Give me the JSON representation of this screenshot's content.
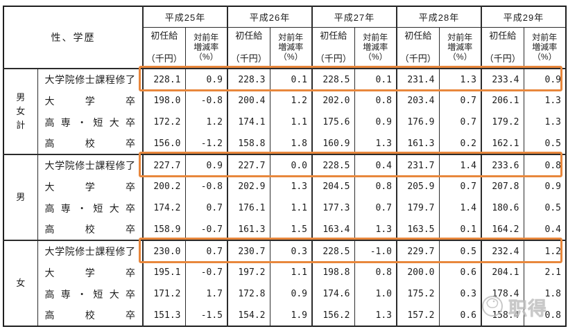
{
  "colors": {
    "highlight": "#E8873C",
    "border": "#2b2b2b",
    "watermark": "#bfbfbf"
  },
  "table": {
    "corner_label": "性、学歴",
    "years": [
      "平成25年",
      "平成26年",
      "平成27年",
      "平成28年",
      "平成29年"
    ],
    "col_salary_lines": [
      "初任給",
      "（千円）"
    ],
    "col_change_lines": [
      "対前年",
      "増減率",
      "（%）"
    ],
    "groups": [
      {
        "gender": "男女計",
        "rows": [
          {
            "education": "大学院修士課程修了",
            "highlighted": true,
            "values": [
              "228.1",
              "0.9",
              "228.3",
              "0.1",
              "228.5",
              "0.1",
              "231.4",
              "1.3",
              "233.4",
              "0.9"
            ]
          },
          {
            "education": "大学卒",
            "highlighted": false,
            "values": [
              "198.0",
              "-0.8",
              "200.4",
              "1.2",
              "202.0",
              "0.8",
              "203.4",
              "0.7",
              "206.1",
              "1.3"
            ]
          },
          {
            "education": "高専・短大卒",
            "highlighted": false,
            "values": [
              "172.2",
              "1.2",
              "174.1",
              "1.1",
              "175.6",
              "0.9",
              "176.9",
              "0.7",
              "179.2",
              "1.3"
            ]
          },
          {
            "education": "高校卒",
            "highlighted": false,
            "values": [
              "156.0",
              "-1.2",
              "158.8",
              "1.8",
              "160.9",
              "1.3",
              "161.3",
              "0.2",
              "162.1",
              "0.5"
            ]
          }
        ]
      },
      {
        "gender": "男",
        "rows": [
          {
            "education": "大学院修士課程修了",
            "highlighted": true,
            "values": [
              "227.7",
              "0.9",
              "227.7",
              "0.0",
              "228.5",
              "0.4",
              "231.7",
              "1.4",
              "233.6",
              "0.8"
            ]
          },
          {
            "education": "大学卒",
            "highlighted": false,
            "values": [
              "200.2",
              "-0.8",
              "202.9",
              "1.3",
              "204.5",
              "0.8",
              "205.9",
              "0.7",
              "207.8",
              "0.9"
            ]
          },
          {
            "education": "高専・短大卒",
            "highlighted": false,
            "values": [
              "174.2",
              "0.7",
              "176.1",
              "1.1",
              "177.3",
              "0.7",
              "179.7",
              "1.4",
              "180.6",
              "0.5"
            ]
          },
          {
            "education": "高校卒",
            "highlighted": false,
            "values": [
              "158.9",
              "-0.7",
              "161.3",
              "1.5",
              "163.4",
              "1.3",
              "163.5",
              "0.1",
              "164.2",
              "0.4"
            ]
          }
        ]
      },
      {
        "gender": "女",
        "rows": [
          {
            "education": "大学院修士課程修了",
            "highlighted": true,
            "values": [
              "230.0",
              "0.7",
              "230.7",
              "0.3",
              "228.5",
              "-1.0",
              "229.7",
              "0.5",
              "232.4",
              "1.2"
            ]
          },
          {
            "education": "大学卒",
            "highlighted": false,
            "values": [
              "195.1",
              "-0.7",
              "197.2",
              "1.1",
              "198.8",
              "0.8",
              "200.0",
              "0.6",
              "204.1",
              "2.1"
            ]
          },
          {
            "education": "高専・短大卒",
            "highlighted": false,
            "values": [
              "171.2",
              "1.7",
              "172.8",
              "0.9",
              "174.6",
              "1.0",
              "175.2",
              "0.3",
              "178.4",
              "1.8"
            ]
          },
          {
            "education": "高校卒",
            "highlighted": false,
            "values": [
              "151.3",
              "-1.5",
              "154.2",
              "1.9",
              "156.2",
              "1.3",
              "157.2",
              "0.6",
              "158.4",
              "0.8"
            ]
          }
        ]
      }
    ]
  },
  "watermark": {
    "logo": "bird-circle-logo",
    "text": "职得"
  }
}
